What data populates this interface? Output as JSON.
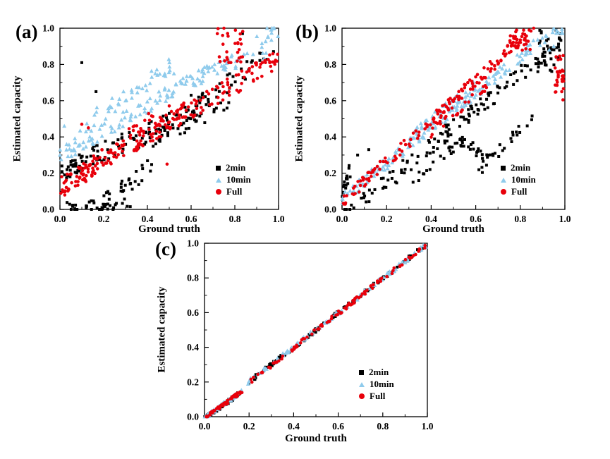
{
  "figure": {
    "background": "#ffffff"
  },
  "chart_data": {
    "type": "scatter",
    "ticks": [
      "0.0",
      "0.2",
      "0.4",
      "0.6",
      "0.8",
      "1.0"
    ],
    "tick_values": [
      0,
      0.2,
      0.4,
      0.6,
      0.8,
      1.0
    ],
    "xlim": [
      0,
      1
    ],
    "ylim": [
      0,
      1
    ],
    "grid": false,
    "legend_position": "lower right",
    "panels": [
      {
        "label": "(a)",
        "xlabel": "Ground truth",
        "ylabel": "Estimated capacity",
        "series": [
          {
            "name": "2min",
            "marker": "square",
            "color": "#000000",
            "seed": 11,
            "segments": [
              {
                "type": "band",
                "n": 30,
                "x": [
                  0.0,
                  0.12
                ],
                "a": 0.2,
                "b": 0.6,
                "noise": 0.05
              },
              {
                "type": "band",
                "n": 35,
                "x": [
                  0.03,
                  0.33
                ],
                "a": 0.01,
                "b": 0.05,
                "noise": 0.035
              },
              {
                "type": "band",
                "n": 30,
                "x": [
                  0.18,
                  0.42
                ],
                "a": -0.12,
                "b": 0.85,
                "noise": 0.05
              },
              {
                "type": "band",
                "n": 55,
                "x": [
                  0.12,
                  0.5
                ],
                "a": 0.22,
                "b": 0.5,
                "noise": 0.06
              },
              {
                "type": "band",
                "n": 75,
                "x": [
                  0.4,
                  1.0
                ],
                "a": 0.02,
                "b": 0.88,
                "noise": 0.05
              },
              {
                "type": "band",
                "n": 20,
                "x": [
                  0.55,
                  0.78
                ],
                "a": 0.1,
                "b": 0.62,
                "noise": 0.035
              }
            ],
            "outliers": [
              [
                0.1,
                0.81
              ],
              [
                0.165,
                0.65
              ],
              [
                0.835,
                0.97
              ],
              [
                0.88,
                0.82
              ],
              [
                0.92,
                0.86
              ],
              [
                0.07,
                0.27
              ],
              [
                0.5,
                0.53
              ],
              [
                0.6,
                0.63
              ]
            ]
          },
          {
            "name": "10min",
            "marker": "triangle",
            "color": "#8fcbec",
            "seed": 12,
            "segments": [
              {
                "type": "band",
                "n": 120,
                "x": [
                  0.0,
                  1.0
                ],
                "a": 0.3,
                "b": 0.68,
                "noise": 0.045
              },
              {
                "type": "band",
                "n": 45,
                "x": [
                  0.05,
                  0.55
                ],
                "a": 0.38,
                "b": 0.8,
                "noise": 0.05
              },
              {
                "type": "band",
                "n": 25,
                "x": [
                  0.55,
                  0.95
                ],
                "a": 0.45,
                "b": 0.45,
                "noise": 0.04
              },
              {
                "type": "cluster",
                "n": 8,
                "c": [
                  0.97,
                  0.99
                ],
                "r": [
                  0.025,
                  0.02
                ]
              }
            ],
            "outliers": [
              [
                0.0,
                0.3
              ],
              [
                0.02,
                0.46
              ],
              [
                0.3,
                0.6
              ],
              [
                0.42,
                0.73
              ]
            ]
          },
          {
            "name": "Full",
            "marker": "circle",
            "color": "#e8000b",
            "seed": 13,
            "segments": [
              {
                "type": "band",
                "n": 200,
                "x": [
                  0.0,
                  1.0
                ],
                "a": 0.13,
                "b": 0.7,
                "noise": 0.055
              },
              {
                "type": "band",
                "n": 40,
                "x": [
                  0.0,
                  0.3
                ],
                "a": 0.1,
                "b": 0.9,
                "noise": 0.06
              },
              {
                "type": "cluster",
                "n": 28,
                "c": [
                  0.78,
                  0.9
                ],
                "r": [
                  0.06,
                  0.1
                ]
              },
              {
                "type": "band",
                "n": 25,
                "x": [
                  0.3,
                  0.6
                ],
                "a": 0.3,
                "b": 0.45,
                "noise": 0.05
              }
            ],
            "outliers": [
              [
                0.49,
                0.25
              ],
              [
                0.1,
                0.47
              ],
              [
                0.13,
                0.45
              ],
              [
                0.75,
                1.0
              ],
              [
                0.72,
                0.97
              ]
            ]
          }
        ]
      },
      {
        "label": "(b)",
        "xlabel": "Ground truth",
        "ylabel": "Estimated capacity",
        "series": [
          {
            "name": "2min",
            "marker": "square",
            "color": "#000000",
            "seed": 21,
            "segments": [
              {
                "type": "band",
                "n": 120,
                "x": [
                  0.0,
                  1.0
                ],
                "a": -0.05,
                "b": 1.0,
                "noise": 0.05
              },
              {
                "type": "band",
                "n": 25,
                "x": [
                  0.45,
                  0.68
                ],
                "a": 0.78,
                "b": -0.75,
                "noise": 0.035
              },
              {
                "type": "band",
                "n": 25,
                "x": [
                  0.6,
                  0.9
                ],
                "a": -0.55,
                "b": 1.25,
                "noise": 0.04
              },
              {
                "type": "cluster",
                "n": 35,
                "c": [
                  0.93,
                  0.87
                ],
                "r": [
                  0.055,
                  0.12
                ]
              },
              {
                "type": "band",
                "n": 15,
                "x": [
                  0.0,
                  0.04
                ],
                "a": 0.1,
                "b": 3.0,
                "noise": 0.05
              },
              {
                "type": "band",
                "n": 20,
                "x": [
                  0.3,
                  0.55
                ],
                "a": -0.16,
                "b": 1.0,
                "noise": 0.03
              }
            ],
            "outliers": [
              [
                0.07,
                0.3
              ],
              [
                0.12,
                0.33
              ],
              [
                0.98,
                0.97
              ],
              [
                0.96,
                0.99
              ]
            ]
          },
          {
            "name": "10min",
            "marker": "triangle",
            "color": "#8fcbec",
            "seed": 22,
            "segments": [
              {
                "type": "band",
                "n": 170,
                "x": [
                  0.0,
                  0.92
                ],
                "a": 0.06,
                "b": 0.98,
                "noise": 0.035
              },
              {
                "type": "band",
                "n": 30,
                "x": [
                  0.3,
                  0.6
                ],
                "a": 0.1,
                "b": 0.98,
                "noise": 0.03
              },
              {
                "type": "cluster",
                "n": 10,
                "c": [
                  0.97,
                  0.985
                ],
                "r": [
                  0.025,
                  0.015
                ]
              }
            ],
            "outliers": [
              [
                0.95,
                0.9
              ],
              [
                0.93,
                0.88
              ]
            ]
          },
          {
            "name": "Full",
            "marker": "circle",
            "color": "#e8000b",
            "seed": 23,
            "segments": [
              {
                "type": "band",
                "n": 150,
                "x": [
                  0.0,
                  0.83
                ],
                "a": 0.04,
                "b": 1.12,
                "noise": 0.035
              },
              {
                "type": "cluster",
                "n": 30,
                "c": [
                  0.8,
                  0.93
                ],
                "r": [
                  0.05,
                  0.06
                ]
              },
              {
                "type": "cluster",
                "n": 30,
                "c": [
                  0.975,
                  0.73
                ],
                "r": [
                  0.02,
                  0.13
                ]
              },
              {
                "type": "band",
                "n": 25,
                "x": [
                  0.4,
                  0.65
                ],
                "a": 0.0,
                "b": 1.05,
                "noise": 0.025
              }
            ],
            "outliers": [
              [
                0.86,
                1.0
              ],
              [
                0.84,
                0.99
              ]
            ]
          }
        ]
      },
      {
        "label": "(c)",
        "xlabel": "Ground truth",
        "ylabel": "Estimated capacity",
        "series": [
          {
            "name": "2min",
            "marker": "square",
            "color": "#000000",
            "seed": 31,
            "segments": [
              {
                "type": "band",
                "n": 70,
                "x": [
                  0.0,
                  0.168
                ],
                "a": -0.012,
                "b": 0.93,
                "noise": 0.012
              },
              {
                "type": "band",
                "n": 110,
                "x": [
                  0.195,
                  1.0
                ],
                "a": 0.002,
                "b": 0.995,
                "noise": 0.012
              }
            ],
            "outliers": [
              [
                0.99,
                0.98
              ]
            ]
          },
          {
            "name": "10min",
            "marker": "triangle",
            "color": "#8fcbec",
            "seed": 32,
            "segments": [
              {
                "type": "band",
                "n": 60,
                "x": [
                  0.0,
                  0.168
                ],
                "a": -0.006,
                "b": 0.92,
                "noise": 0.012
              },
              {
                "type": "band",
                "n": 100,
                "x": [
                  0.195,
                  1.0
                ],
                "a": 0.006,
                "b": 0.99,
                "noise": 0.012
              }
            ],
            "outliers": []
          },
          {
            "name": "Full",
            "marker": "circle",
            "color": "#e8000b",
            "seed": 33,
            "segments": [
              {
                "type": "band",
                "n": 60,
                "x": [
                  0.0,
                  0.168
                ],
                "a": -0.01,
                "b": 0.93,
                "noise": 0.01
              },
              {
                "type": "band",
                "n": 100,
                "x": [
                  0.195,
                  1.0
                ],
                "a": -0.004,
                "b": 1.0,
                "noise": 0.012
              }
            ],
            "outliers": []
          }
        ]
      }
    ]
  }
}
